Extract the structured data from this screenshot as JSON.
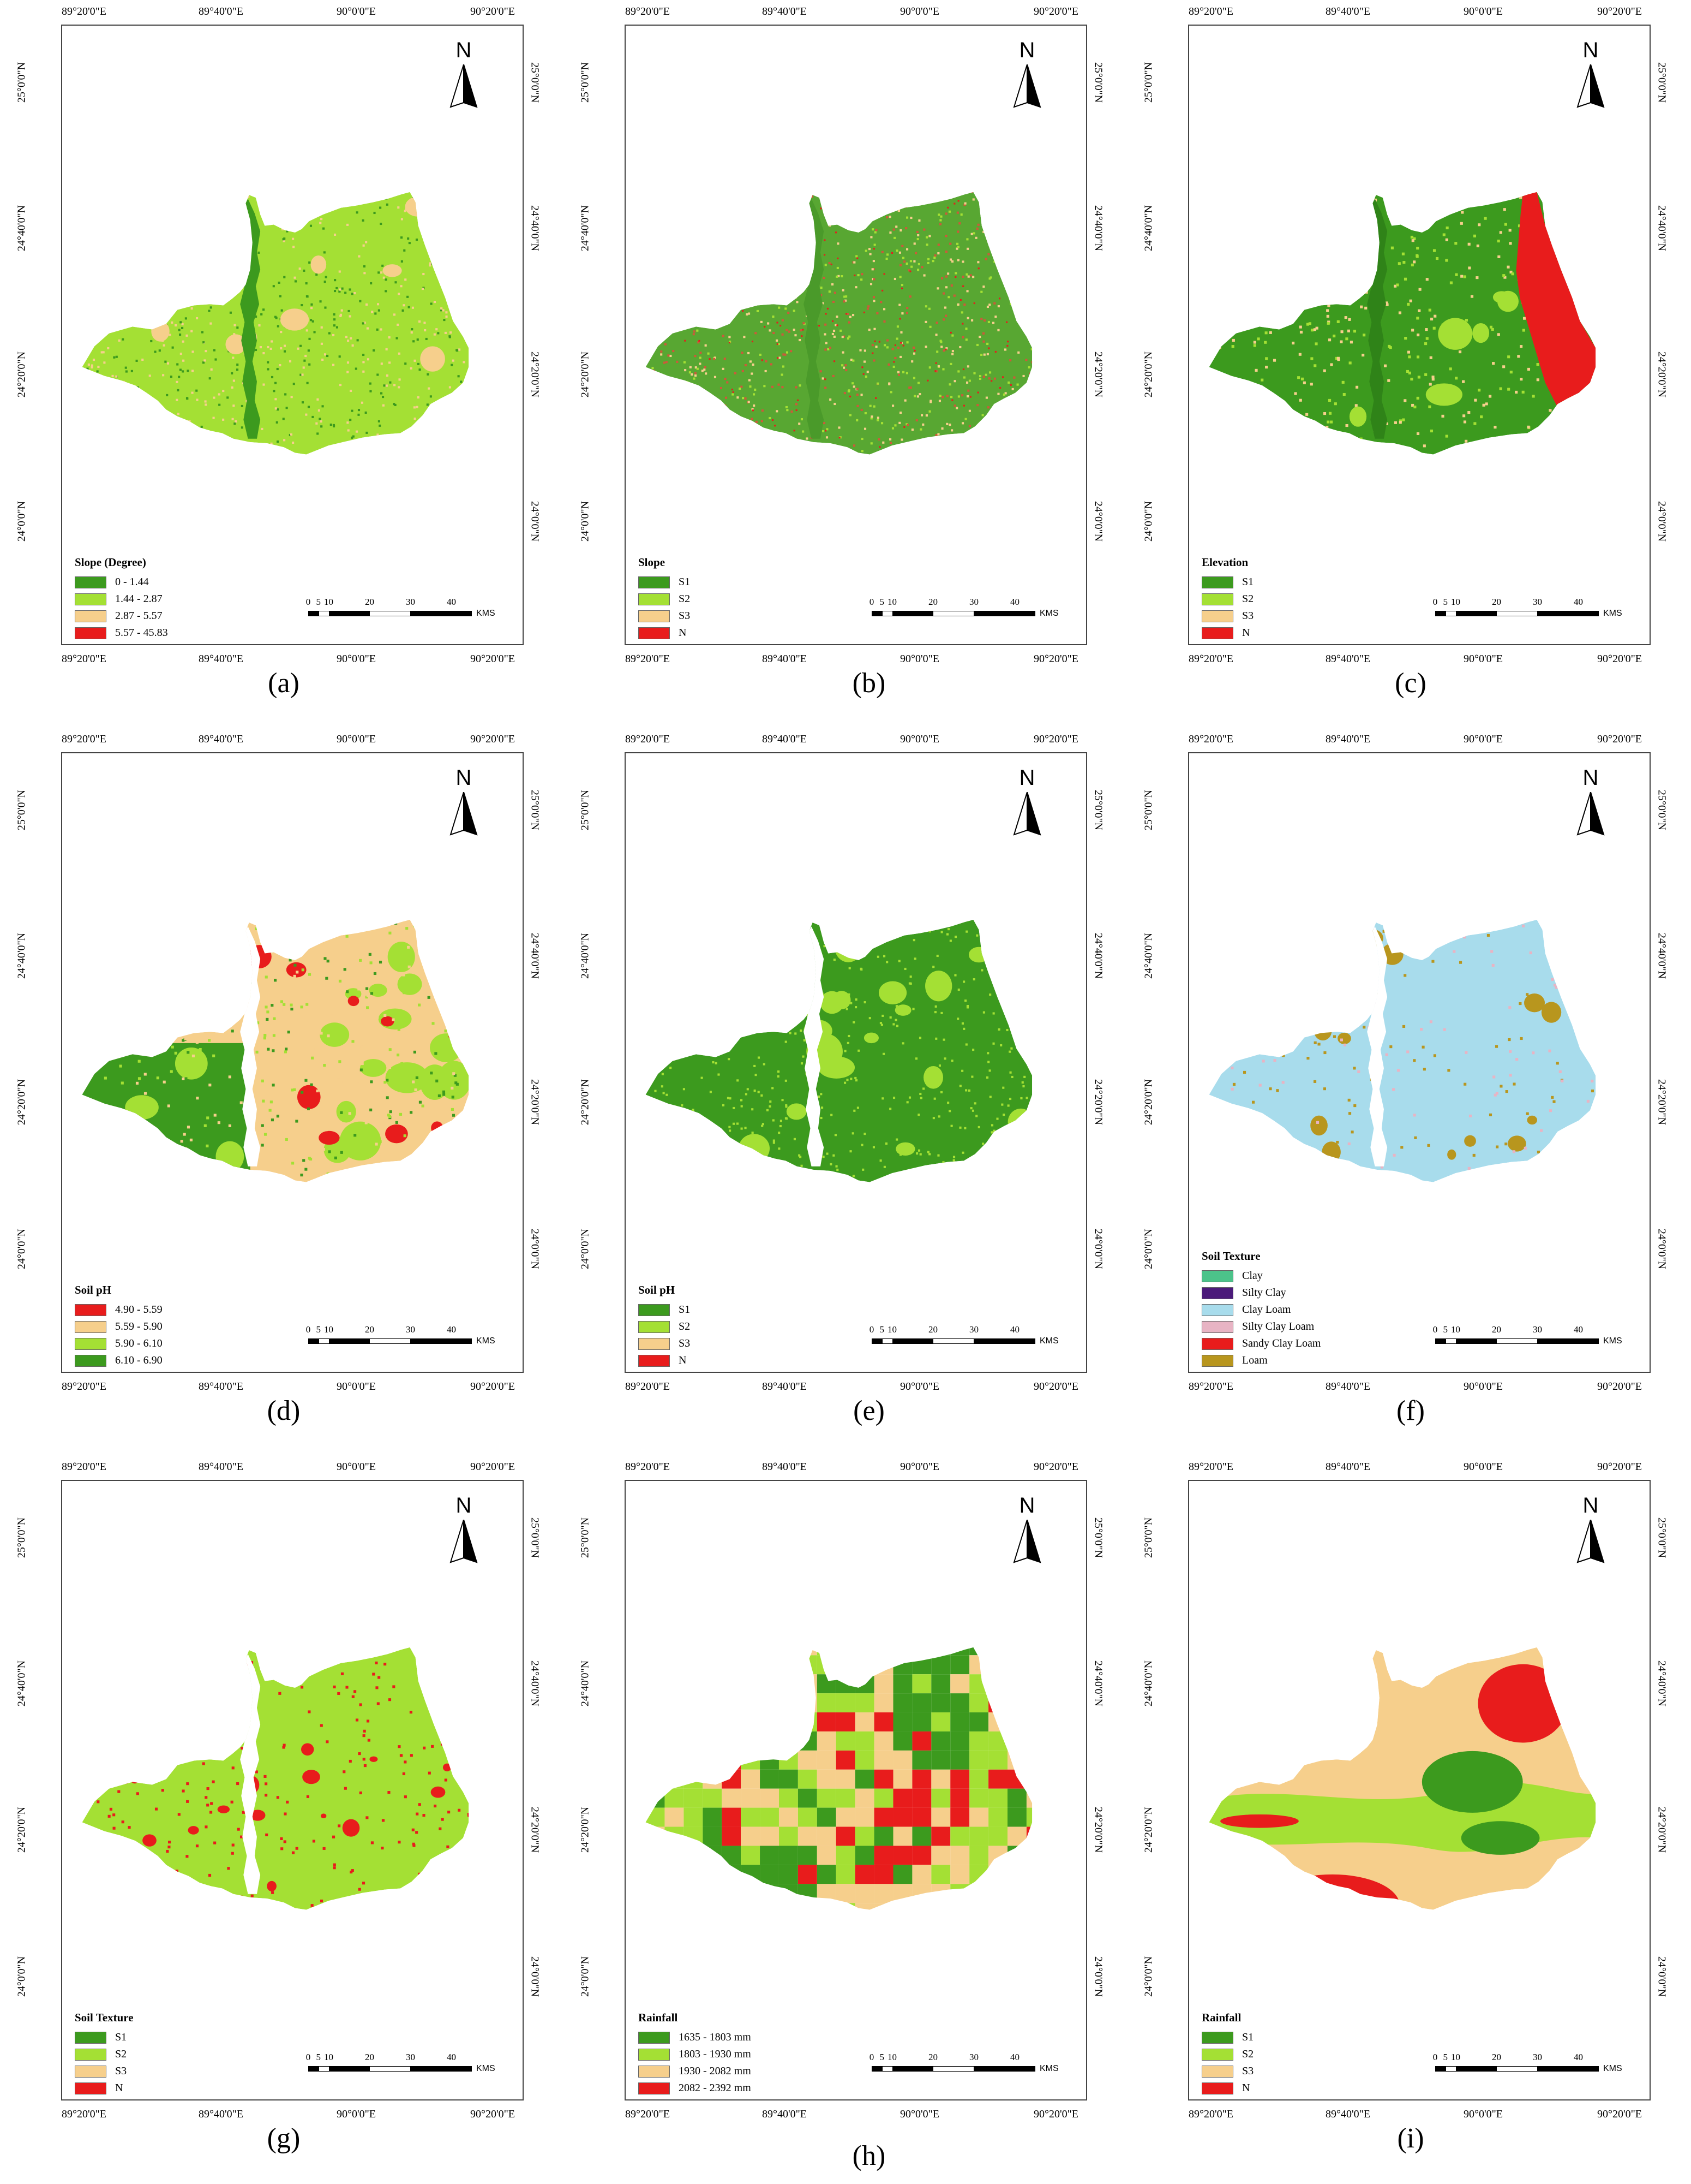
{
  "ticks": {
    "top": [
      "89°20'0\"E",
      "89°40'0\"E",
      "90°0'0\"E",
      "90°20'0\"E"
    ],
    "bottom": [
      "89°20'0\"E",
      "89°40'0\"E",
      "90°0'0\"E",
      "90°20'0\"E"
    ],
    "left": [
      "25°0'0\"N",
      "24°40'0\"N",
      "24°20'0\"N",
      "24°0'0\"N"
    ],
    "right": [
      "25°0'0\"N",
      "24°40'0\"N",
      "24°20'0\"N",
      "24°0'0\"N"
    ]
  },
  "north_label": "N",
  "scale": {
    "labels": [
      "0",
      "5",
      "10",
      "20",
      "30",
      "40"
    ],
    "units": "KMS"
  },
  "colors": {
    "dark_green": "#3c9a1e",
    "light_green": "#a4e034",
    "peach": "#f6cf8c",
    "red": "#e81c1c",
    "clay": "#4cc38a",
    "silty_clay": "#4b1a7a",
    "clay_loam": "#a8dcec",
    "silty_clay_loam": "#e8b4c4",
    "sandy_clay_loam": "#e81c1c",
    "loam": "#b8961e"
  },
  "panels": [
    {
      "caption": "(a)",
      "style": "slope_degree",
      "legend": {
        "title": "Slope (Degree)",
        "items": [
          {
            "label": "0 - 1.44",
            "color": "#3c9a1e"
          },
          {
            "label": "1.44 - 2.87",
            "color": "#a4e034"
          },
          {
            "label": "2.87 - 5.57",
            "color": "#f6cf8c"
          },
          {
            "label": "5.57 - 45.83",
            "color": "#e81c1c"
          }
        ]
      }
    },
    {
      "caption": "(b)",
      "style": "slope_class",
      "legend": {
        "title": "Slope",
        "items": [
          {
            "label": "S1",
            "color": "#3c9a1e"
          },
          {
            "label": "S2",
            "color": "#a4e034"
          },
          {
            "label": "S3",
            "color": "#f6cf8c"
          },
          {
            "label": "N",
            "color": "#e81c1c"
          }
        ]
      }
    },
    {
      "caption": "(c)",
      "style": "elevation",
      "legend": {
        "title": "Elevation",
        "items": [
          {
            "label": "S1",
            "color": "#3c9a1e"
          },
          {
            "label": "S2",
            "color": "#a4e034"
          },
          {
            "label": "S3",
            "color": "#f6cf8c"
          },
          {
            "label": "N",
            "color": "#e81c1c"
          }
        ]
      }
    },
    {
      "caption": "(d)",
      "style": "ph_value",
      "legend": {
        "title": "Soil pH",
        "items": [
          {
            "label": "4.90 - 5.59",
            "color": "#e81c1c"
          },
          {
            "label": "5.59 - 5.90",
            "color": "#f6cf8c"
          },
          {
            "label": "5.90 - 6.10",
            "color": "#a4e034"
          },
          {
            "label": "6.10 - 6.90",
            "color": "#3c9a1e"
          }
        ]
      }
    },
    {
      "caption": "(e)",
      "style": "ph_class",
      "legend": {
        "title": "Soil pH",
        "items": [
          {
            "label": "S1",
            "color": "#3c9a1e"
          },
          {
            "label": "S2",
            "color": "#a4e034"
          },
          {
            "label": "S3",
            "color": "#f6cf8c"
          },
          {
            "label": "N",
            "color": "#e81c1c"
          }
        ]
      }
    },
    {
      "caption": "(f)",
      "style": "texture_type",
      "legend": {
        "title": "Soil Texture",
        "items": [
          {
            "label": "Clay",
            "color": "#4cc38a"
          },
          {
            "label": "Silty Clay",
            "color": "#4b1a7a"
          },
          {
            "label": "Clay Loam",
            "color": "#a8dcec"
          },
          {
            "label": "Silty Clay Loam",
            "color": "#e8b4c4"
          },
          {
            "label": "Sandy Clay Loam",
            "color": "#e81c1c"
          },
          {
            "label": "Loam",
            "color": "#b8961e"
          }
        ]
      }
    },
    {
      "caption": "(g)",
      "style": "texture_class",
      "legend": {
        "title": "Soil Texture",
        "items": [
          {
            "label": "S1",
            "color": "#3c9a1e"
          },
          {
            "label": "S2",
            "color": "#a4e034"
          },
          {
            "label": "S3",
            "color": "#f6cf8c"
          },
          {
            "label": "N",
            "color": "#e81c1c"
          }
        ]
      }
    },
    {
      "caption": "(h)",
      "style": "rainfall_value",
      "legend": {
        "title": "Rainfall",
        "items": [
          {
            "label": "1635 - 1803 mm",
            "color": "#3c9a1e"
          },
          {
            "label": "1803 - 1930 mm",
            "color": "#a4e034"
          },
          {
            "label": "1930 - 2082 mm",
            "color": "#f6cf8c"
          },
          {
            "label": "2082 - 2392 mm",
            "color": "#e81c1c"
          }
        ]
      }
    },
    {
      "caption": "(i)",
      "style": "rainfall_class",
      "legend": {
        "title": "Rainfall",
        "items": [
          {
            "label": "S1",
            "color": "#3c9a1e"
          },
          {
            "label": "S2",
            "color": "#a4e034"
          },
          {
            "label": "S3",
            "color": "#f6cf8c"
          },
          {
            "label": "N",
            "color": "#e81c1c"
          }
        ]
      }
    }
  ]
}
